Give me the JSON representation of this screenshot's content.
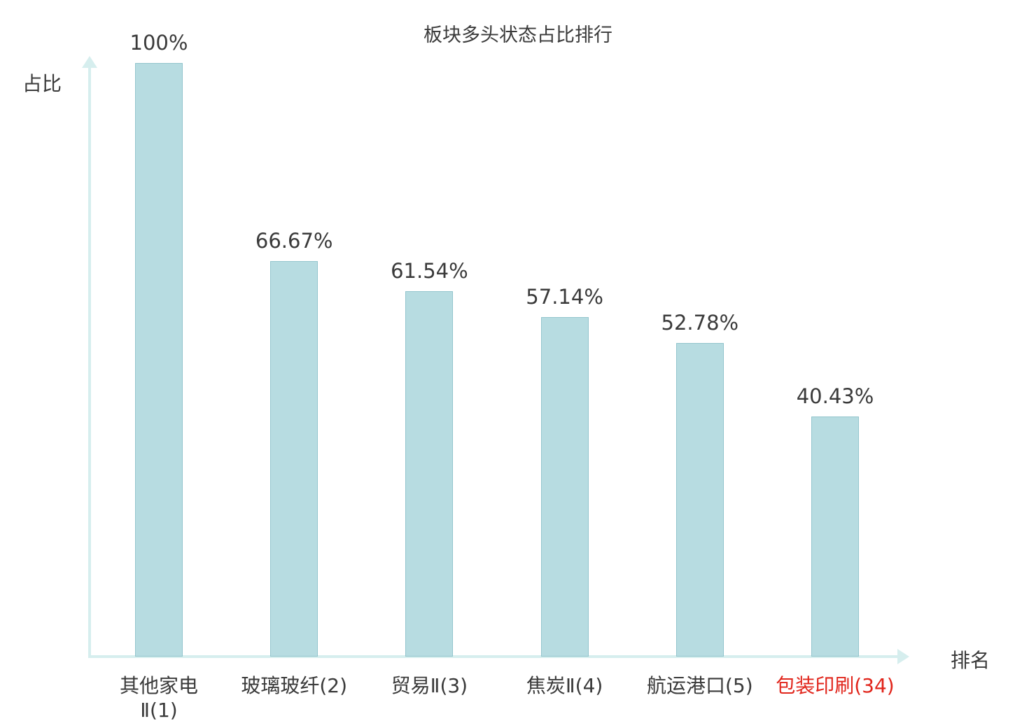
{
  "chart_data": {
    "type": "bar",
    "title": "板块多头状态占比排行",
    "xlabel": "排名",
    "ylabel": "占比",
    "ylim": [
      0,
      100
    ],
    "grid": false,
    "legend": "none",
    "categories": [
      "其他家电\nⅡ(1)",
      "玻璃玻纤(2)",
      "贸易Ⅱ(3)",
      "焦炭Ⅱ(4)",
      "航运港口(5)",
      "包装印刷(34)"
    ],
    "values": [
      100,
      66.67,
      61.54,
      57.14,
      52.78,
      40.43
    ],
    "value_labels": [
      "100%",
      "66.67%",
      "61.54%",
      "57.14%",
      "52.78%",
      "40.43%"
    ],
    "highlight_index": 5,
    "colors": {
      "bar_fill": "#b7dce1",
      "bar_border": "#93c5cd",
      "axis": "#d6eeee",
      "text": "#3a3a3a",
      "highlight_text": "#e1251b",
      "background": "#ffffff"
    }
  }
}
